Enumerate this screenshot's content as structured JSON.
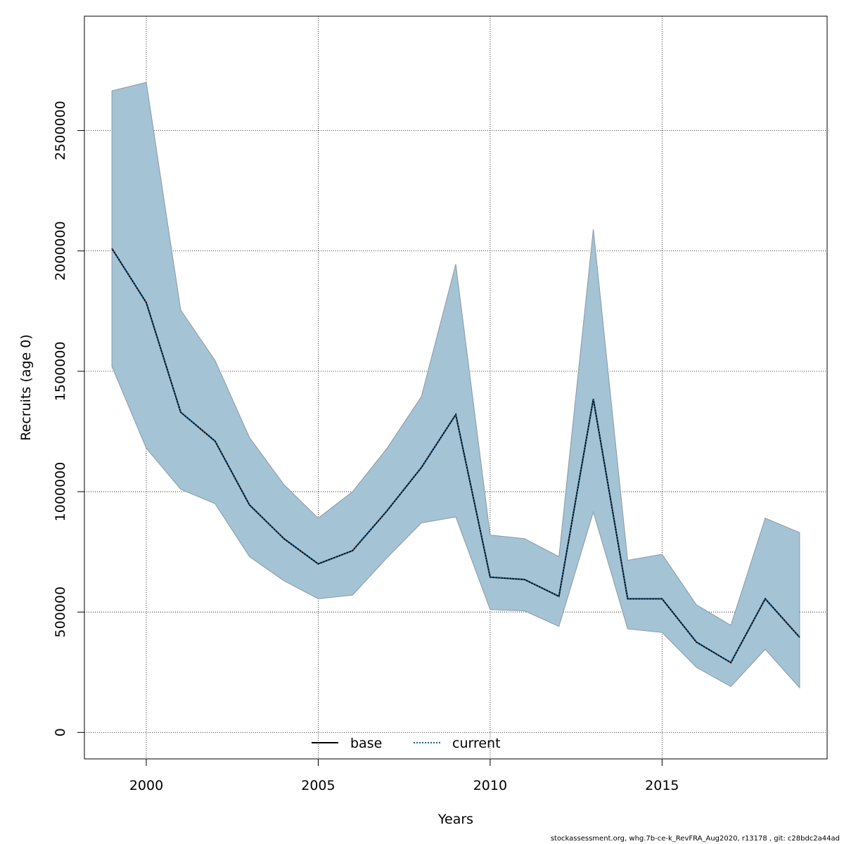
{
  "chart_data": {
    "type": "area",
    "xlabel": "Years",
    "ylabel": "Recruits (age 0)",
    "xlim": [
      1998.2,
      2019.8
    ],
    "ylim": [
      -110000,
      2975000
    ],
    "x_ticks": [
      2000,
      2005,
      2010,
      2015
    ],
    "y_ticks": [
      0,
      500000,
      1000000,
      1500000,
      2000000,
      2500000
    ],
    "x_tick_labels": [
      "2000",
      "2005",
      "2010",
      "2015"
    ],
    "y_tick_labels": [
      "0",
      "500000",
      "1000000",
      "1500000",
      "2000000",
      "2500000"
    ],
    "grid": true,
    "x": [
      1999,
      2000,
      2001,
      2002,
      2003,
      2004,
      2005,
      2006,
      2007,
      2008,
      2009,
      2010,
      2011,
      2012,
      2013,
      2014,
      2015,
      2016,
      2017,
      2018,
      2019
    ],
    "band": {
      "upper": [
        2665000,
        2700000,
        1755000,
        1545000,
        1225000,
        1030000,
        890000,
        1000000,
        1180000,
        1395000,
        1945000,
        820000,
        805000,
        730000,
        2090000,
        715000,
        740000,
        530000,
        445000,
        890000,
        830000
      ],
      "lower": [
        1520000,
        1180000,
        1010000,
        950000,
        730000,
        630000,
        555000,
        570000,
        725000,
        870000,
        895000,
        510000,
        505000,
        440000,
        915000,
        430000,
        415000,
        270000,
        190000,
        345000,
        185000
      ],
      "color": "#a4c3d4"
    },
    "series": [
      {
        "name": "base",
        "values": [
          2010000,
          1785000,
          1330000,
          1210000,
          945000,
          805000,
          700000,
          755000,
          920000,
          1100000,
          1320000,
          645000,
          635000,
          565000,
          1385000,
          555000,
          555000,
          375000,
          290000,
          555000,
          395000
        ],
        "color": "#000000",
        "dash": "solid"
      },
      {
        "name": "current",
        "values": [
          2010000,
          1785000,
          1330000,
          1210000,
          945000,
          805000,
          700000,
          755000,
          920000,
          1100000,
          1320000,
          645000,
          635000,
          565000,
          1385000,
          555000,
          555000,
          375000,
          290000,
          555000,
          395000
        ],
        "color": "#1a5f8a",
        "dash": "dotted"
      }
    ],
    "legend": {
      "placement": "bottom-center",
      "items": [
        "base",
        "current"
      ]
    }
  },
  "footer_text": "stockassessment.org, whg.7b-ce-k_RevFRA_Aug2020, r13178 , git: c28bdc2a44ad"
}
